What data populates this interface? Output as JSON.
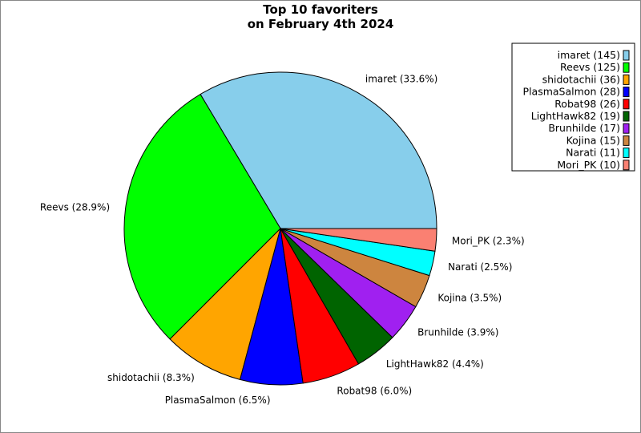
{
  "chart_data": {
    "type": "pie",
    "title": [
      "Top 10 favoriters",
      "on February 4th 2024"
    ],
    "start_angle_deg": 0,
    "direction": "counterclockwise",
    "legend_position": "top-right",
    "slices": [
      {
        "name": "imaret",
        "value": 145,
        "percent_label": "imaret (33.6%)",
        "legend_label": "imaret (145)",
        "color": "#87ceeb"
      },
      {
        "name": "Reevs",
        "value": 125,
        "percent_label": "Reevs (28.9%)",
        "legend_label": "Reevs (125)",
        "color": "#00ff00"
      },
      {
        "name": "shidotachii",
        "value": 36,
        "percent_label": "shidotachii (8.3%)",
        "legend_label": "shidotachii (36)",
        "color": "#ffa500"
      },
      {
        "name": "PlasmaSalmon",
        "value": 28,
        "percent_label": "PlasmaSalmon (6.5%)",
        "legend_label": "PlasmaSalmon (28)",
        "color": "#0000ff"
      },
      {
        "name": "Robat98",
        "value": 26,
        "percent_label": "Robat98 (6.0%)",
        "legend_label": "Robat98 (26)",
        "color": "#ff0000"
      },
      {
        "name": "LightHawk82",
        "value": 19,
        "percent_label": "LightHawk82 (4.4%)",
        "legend_label": "LightHawk82 (19)",
        "color": "#006400"
      },
      {
        "name": "Brunhilde",
        "value": 17,
        "percent_label": "Brunhilde (3.9%)",
        "legend_label": "Brunhilde (17)",
        "color": "#a020f0"
      },
      {
        "name": "Kojina",
        "value": 15,
        "percent_label": "Kojina (3.5%)",
        "legend_label": "Kojina (15)",
        "color": "#cd853f"
      },
      {
        "name": "Narati",
        "value": 11,
        "percent_label": "Narati (2.5%)",
        "legend_label": "Narati (11)",
        "color": "#00ffff"
      },
      {
        "name": "Mori_PK",
        "value": 10,
        "percent_label": "Mori_PK (2.3%)",
        "legend_label": "Mori_PK (10)",
        "color": "#fa8072"
      }
    ]
  }
}
